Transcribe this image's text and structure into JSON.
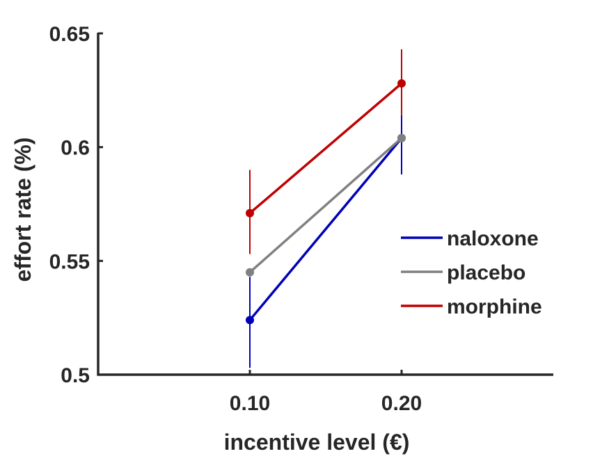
{
  "chart_data": {
    "type": "line",
    "title": "",
    "xlabel": "incentive level (€)",
    "ylabel": "effort rate (%)",
    "categories": [
      "0.10",
      "0.20"
    ],
    "xlim": [
      0,
      3
    ],
    "ylim": [
      0.5,
      0.65
    ],
    "yticks": [
      "0.5",
      "0.55",
      "0.6",
      "0.65"
    ],
    "grid": false,
    "legend_position": "right",
    "series": [
      {
        "name": "naloxone",
        "color": "#0000b8",
        "values": [
          0.524,
          0.604
        ],
        "err_low": [
          0.503,
          0.588
        ],
        "err_high": [
          0.543,
          0.614
        ]
      },
      {
        "name": "placebo",
        "color": "#808080",
        "values": [
          0.545,
          0.604
        ],
        "err_low": [
          0.545,
          0.604
        ],
        "err_high": [
          0.545,
          0.604
        ]
      },
      {
        "name": "morphine",
        "color": "#c00000",
        "values": [
          0.571,
          0.628
        ],
        "err_low": [
          0.553,
          0.614
        ],
        "err_high": [
          0.59,
          0.643
        ]
      }
    ]
  }
}
